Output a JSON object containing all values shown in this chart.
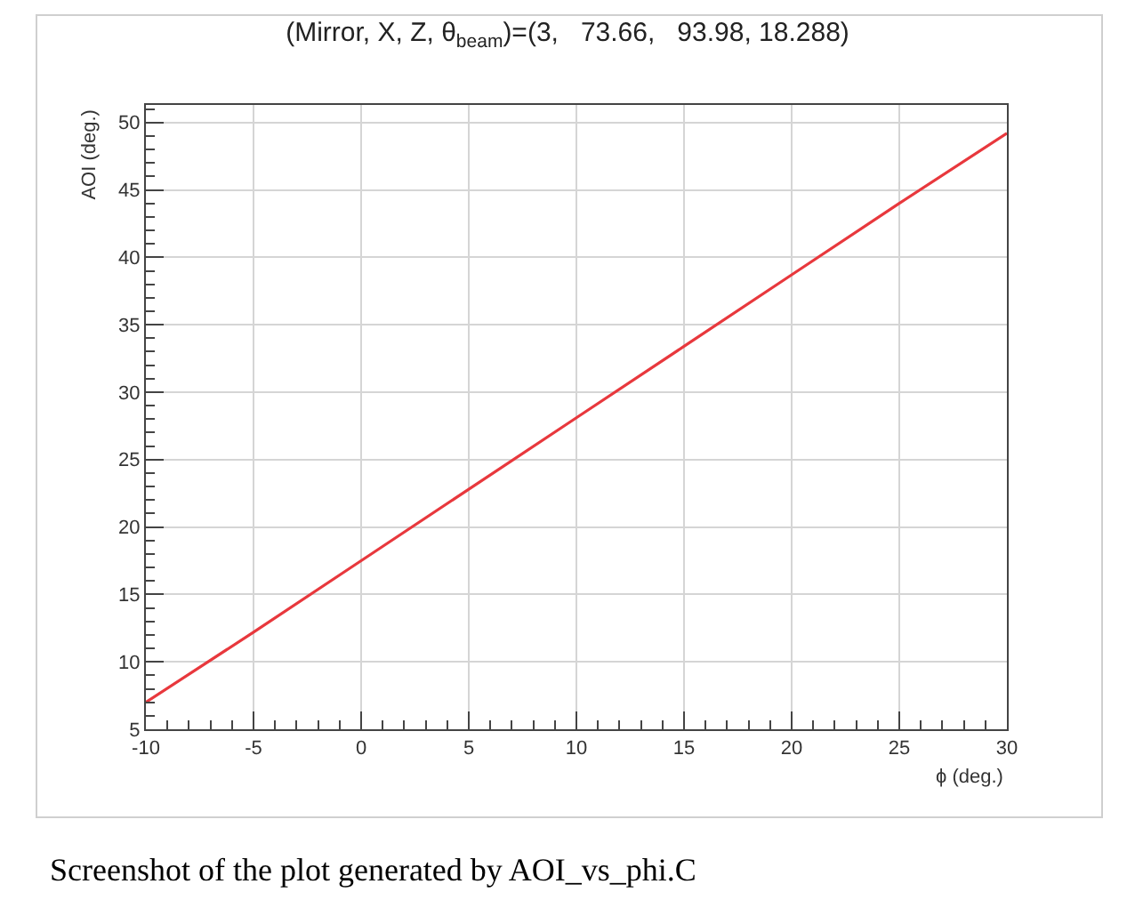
{
  "chart_data": {
    "type": "line",
    "title": "(Mirror, X, Z, θ$_{beam}$)=(3,   73.66,   93.98, 18.288)",
    "xlabel": "ϕ (deg.)",
    "ylabel": "AOI (deg.)",
    "x": [
      -10,
      -5,
      0,
      5,
      10,
      15,
      20,
      25,
      30
    ],
    "series": [
      {
        "color": "#e8383d",
        "values": [
          7.0,
          12.2,
          17.5,
          22.8,
          28.1,
          33.4,
          38.7,
          44.0,
          49.2
        ]
      }
    ],
    "xlim": [
      -10,
      30
    ],
    "xticks": [
      -10,
      -5,
      0,
      5,
      10,
      15,
      20,
      25,
      30
    ],
    "ylim": [
      5,
      51.3
    ],
    "yticks": [
      5,
      10,
      15,
      20,
      25,
      30,
      35,
      40,
      45,
      50
    ],
    "grid": true,
    "marker": "none",
    "line_style": "solid",
    "annotations": [
      "Screenshot of the plot generated by AOI_vs_phi.C"
    ]
  }
}
